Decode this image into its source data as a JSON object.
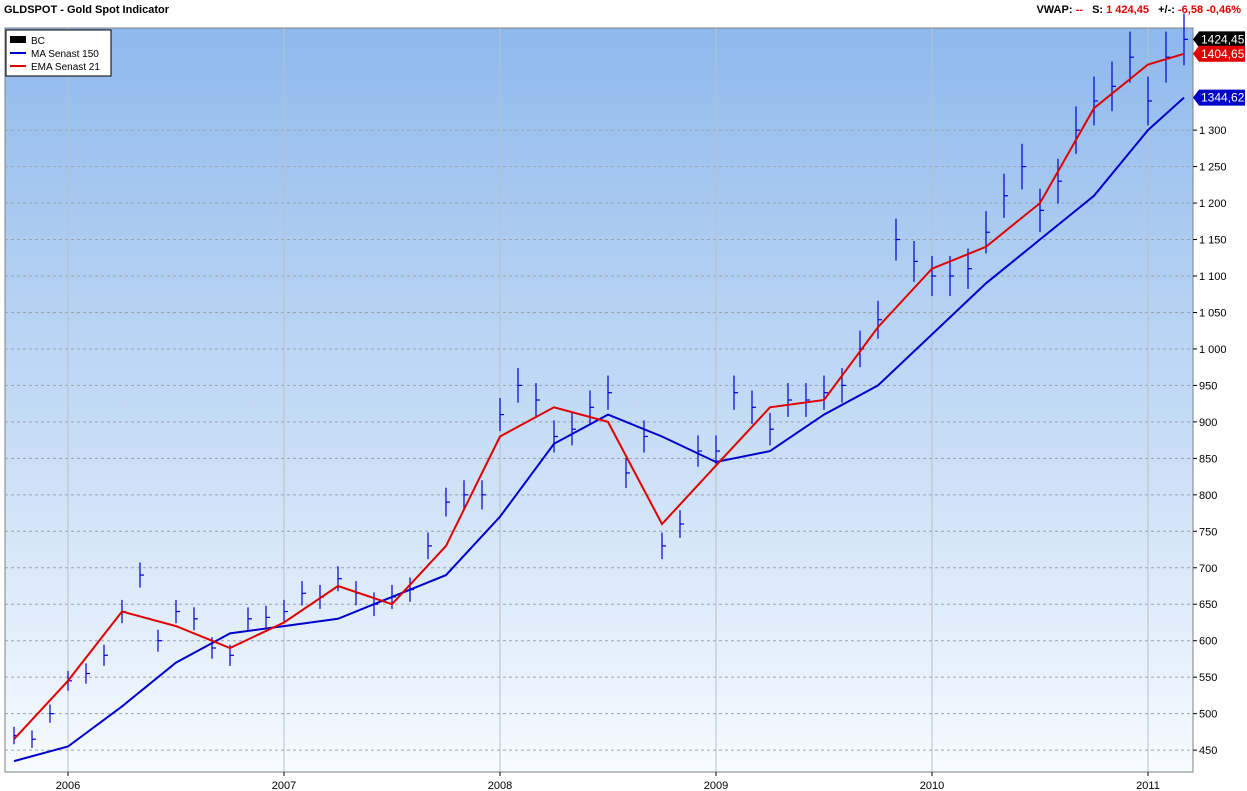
{
  "header": {
    "title": "GLDSPOT - Gold Spot Indicator",
    "vwap_label": "VWAP:",
    "vwap_value": "--",
    "s_label": "S:",
    "s_value": "1 424,45",
    "change_label": "+/-:",
    "change_value": "-6,58",
    "change_pct": "-0,46%"
  },
  "colors": {
    "price": "#0000cc",
    "ma": "#0000cc",
    "ema": "#e00000",
    "last_badge": "#000000",
    "ema_badge": "#e00000",
    "ma_badge": "#0000cc",
    "bg_top": "#8eb9ec",
    "bg_bottom": "#f7fbff"
  },
  "chart_data": {
    "type": "line",
    "title": "GLDSPOT - Gold Spot Indicator",
    "x_axis": {
      "ticks": [
        "2006",
        "2007",
        "2008",
        "2009",
        "2010",
        "2011"
      ],
      "range": [
        "2005-10",
        "2011-03"
      ]
    },
    "y_axis": {
      "ticks": [
        "450",
        "500",
        "550",
        "600",
        "650",
        "700",
        "750",
        "800",
        "850",
        "900",
        "950",
        "1 000",
        "1 050",
        "1 100",
        "1 150",
        "1 200",
        "1 250",
        "1 300"
      ],
      "range": [
        420,
        1440
      ],
      "position": "right"
    },
    "grid": true,
    "legend": {
      "placement": "top-left",
      "entries": [
        "BC",
        "MA  Senast 150",
        "EMA  Senast 21"
      ]
    },
    "last_values": {
      "price": "1424,45",
      "ema": "1404,65",
      "ma": "1344,62"
    },
    "series": [
      {
        "name": "BC",
        "style": "price-bars",
        "x": [
          "2005-10",
          "2005-11",
          "2005-12",
          "2006-01",
          "2006-02",
          "2006-03",
          "2006-04",
          "2006-05",
          "2006-06",
          "2006-07",
          "2006-08",
          "2006-09",
          "2006-10",
          "2006-11",
          "2006-12",
          "2007-01",
          "2007-02",
          "2007-03",
          "2007-04",
          "2007-05",
          "2007-06",
          "2007-07",
          "2007-08",
          "2007-09",
          "2007-10",
          "2007-11",
          "2007-12",
          "2008-01",
          "2008-02",
          "2008-03",
          "2008-04",
          "2008-05",
          "2008-06",
          "2008-07",
          "2008-08",
          "2008-09",
          "2008-10",
          "2008-11",
          "2008-12",
          "2009-01",
          "2009-02",
          "2009-03",
          "2009-04",
          "2009-05",
          "2009-06",
          "2009-07",
          "2009-08",
          "2009-09",
          "2009-10",
          "2009-11",
          "2009-12",
          "2010-01",
          "2010-02",
          "2010-03",
          "2010-04",
          "2010-05",
          "2010-06",
          "2010-07",
          "2010-08",
          "2010-09",
          "2010-10",
          "2010-11",
          "2010-12",
          "2011-01",
          "2011-02",
          "2011-03"
        ],
        "values": [
          470,
          465,
          500,
          545,
          555,
          580,
          640,
          690,
          600,
          640,
          630,
          590,
          580,
          630,
          632,
          640,
          665,
          660,
          685,
          665,
          650,
          660,
          670,
          730,
          790,
          800,
          800,
          910,
          950,
          930,
          880,
          890,
          920,
          940,
          830,
          880,
          730,
          760,
          860,
          860,
          940,
          920,
          890,
          930,
          930,
          940,
          950,
          1000,
          1040,
          1150,
          1120,
          1100,
          1100,
          1110,
          1160,
          1210,
          1250,
          1190,
          1230,
          1300,
          1340,
          1360,
          1400,
          1340,
          1400,
          1424.45
        ]
      },
      {
        "name": "MA  Senast 150",
        "x": [
          "2005-10",
          "2006-01",
          "2006-04",
          "2006-07",
          "2006-10",
          "2007-01",
          "2007-04",
          "2007-07",
          "2007-10",
          "2008-01",
          "2008-04",
          "2008-07",
          "2008-10",
          "2009-01",
          "2009-04",
          "2009-07",
          "2009-10",
          "2010-01",
          "2010-04",
          "2010-07",
          "2010-10",
          "2011-01",
          "2011-03"
        ],
        "values": [
          435,
          455,
          510,
          570,
          610,
          620,
          630,
          660,
          690,
          770,
          870,
          910,
          880,
          845,
          860,
          910,
          950,
          1020,
          1090,
          1150,
          1210,
          1300,
          1344.62
        ]
      },
      {
        "name": "EMA  Senast 21",
        "x": [
          "2005-10",
          "2006-01",
          "2006-04",
          "2006-07",
          "2006-10",
          "2007-01",
          "2007-04",
          "2007-07",
          "2007-10",
          "2008-01",
          "2008-04",
          "2008-07",
          "2008-10",
          "2009-01",
          "2009-04",
          "2009-07",
          "2009-10",
          "2010-01",
          "2010-04",
          "2010-07",
          "2010-10",
          "2011-01",
          "2011-03"
        ],
        "values": [
          465,
          545,
          640,
          620,
          590,
          625,
          675,
          650,
          730,
          880,
          920,
          900,
          760,
          840,
          920,
          930,
          1030,
          1110,
          1140,
          1200,
          1330,
          1390,
          1404.65
        ]
      }
    ]
  }
}
